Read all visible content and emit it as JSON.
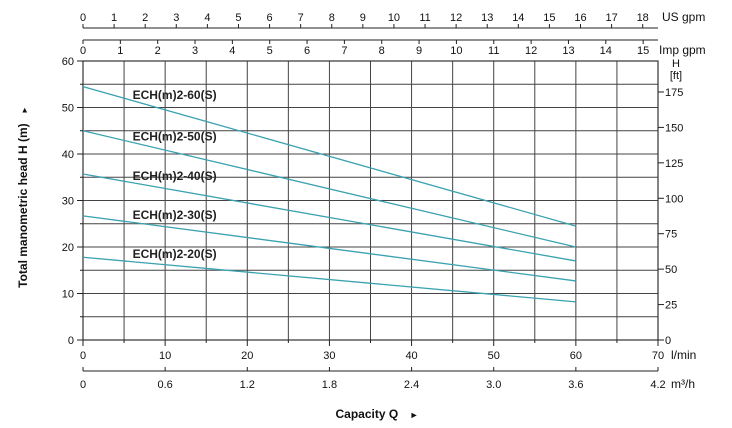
{
  "chart_data": {
    "type": "line",
    "title": "",
    "xlabel": "Capacity Q",
    "xlabel_arrow": "►",
    "ylabel": "Total manometric head H (m)",
    "ylabel_arrow": "►",
    "x_unit": "l/min",
    "xlim": [
      0,
      70
    ],
    "x_ticks": [
      0,
      10,
      20,
      30,
      40,
      50,
      60,
      70
    ],
    "ylim": [
      0,
      60
    ],
    "y_ticks": [
      0,
      10,
      20,
      30,
      40,
      50,
      60
    ],
    "grid": true,
    "x_secondary_m3h": {
      "unit": "m³/h",
      "ticks": [
        {
          "value": 0,
          "label": "0"
        },
        {
          "value": 0.6,
          "label": "0.6"
        },
        {
          "value": 1.2,
          "label": "1.2"
        },
        {
          "value": 1.8,
          "label": "1.8"
        },
        {
          "value": 2.4,
          "label": "2.4"
        },
        {
          "value": 3.0,
          "label": "3.0"
        },
        {
          "value": 3.6,
          "label": "3.6"
        },
        {
          "value": 4.2,
          "label": "4.2"
        }
      ]
    },
    "x_top_us_gpm": {
      "unit": "US gpm",
      "ticks": [
        0,
        1,
        2,
        3,
        4,
        5,
        6,
        7,
        8,
        9,
        10,
        11,
        12,
        13,
        14,
        15,
        16,
        17,
        18
      ]
    },
    "x_top_imp_gpm": {
      "unit": "Imp gpm",
      "ticks": [
        0,
        1,
        2,
        3,
        4,
        5,
        6,
        7,
        8,
        9,
        10,
        11,
        12,
        13,
        14,
        15
      ]
    },
    "y_right_ft": {
      "unit_line1": "H",
      "unit_line2": "[ft]",
      "ticks": [
        0,
        25,
        50,
        75,
        100,
        125,
        150,
        175
      ]
    },
    "series": [
      {
        "name": "ECH(m)2-60(S)",
        "x": [
          0,
          60
        ],
        "y": [
          54.5,
          24.5
        ]
      },
      {
        "name": "ECH(m)2-50(S)",
        "x": [
          0,
          60
        ],
        "y": [
          45,
          20
        ]
      },
      {
        "name": "ECH(m)2-40(S)",
        "x": [
          0,
          60
        ],
        "y": [
          35.7,
          17
        ]
      },
      {
        "name": "ECH(m)2-30(S)",
        "x": [
          0,
          60
        ],
        "y": [
          26.7,
          12.7
        ]
      },
      {
        "name": "ECH(m)2-20(S)",
        "x": [
          0,
          60
        ],
        "y": [
          17.8,
          8.2
        ]
      }
    ],
    "line_color": "#3aa2b0"
  }
}
